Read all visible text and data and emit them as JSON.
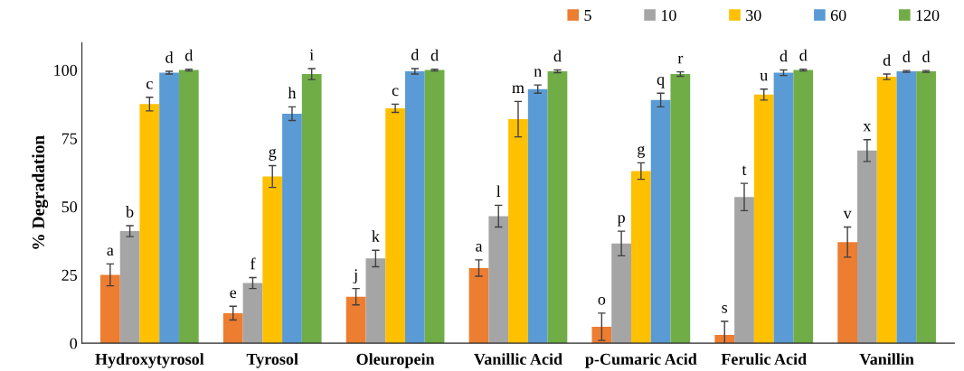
{
  "chart_data": {
    "type": "bar",
    "ylabel": "% Degradation",
    "categories": [
      "Hydroxytyrosol",
      "Tyrosol",
      "Oleuropein",
      "Vanillic Acid",
      "p-Cumaric Acid",
      "Ferulic Acid",
      "Vanillin"
    ],
    "series": [
      {
        "name": "5",
        "color": "#ed7d31",
        "values": [
          25,
          11,
          17,
          27.5,
          6,
          3,
          37
        ],
        "errors": [
          4,
          2.5,
          3,
          3,
          5,
          5,
          5.5
        ],
        "value_labels": [
          "a",
          "e",
          "j",
          "a",
          "o",
          "s",
          "v"
        ]
      },
      {
        "name": "10",
        "color": "#a5a5a5",
        "values": [
          41,
          22,
          31,
          46.5,
          36.5,
          53.5,
          70.5
        ],
        "errors": [
          2,
          2,
          3,
          4,
          4.5,
          5,
          4
        ],
        "value_labels": [
          "b",
          "f",
          "k",
          "l",
          "p",
          "t",
          "x"
        ]
      },
      {
        "name": "30",
        "color": "#ffc000",
        "values": [
          87.5,
          61,
          86,
          82,
          63,
          91,
          97.5
        ],
        "errors": [
          2.5,
          4,
          1.5,
          6.5,
          3,
          2,
          1
        ],
        "value_labels": [
          "c",
          "g",
          "c",
          "m",
          "g",
          "u",
          "d"
        ]
      },
      {
        "name": "60",
        "color": "#5b9bd5",
        "values": [
          99,
          84,
          99.5,
          93,
          89,
          99,
          99.5
        ],
        "errors": [
          0.5,
          2.5,
          1,
          1.5,
          2.5,
          1,
          0.3
        ],
        "value_labels": [
          "d",
          "h",
          "d",
          "n",
          "q",
          "d",
          "d"
        ]
      },
      {
        "name": "120",
        "color": "#70ad47",
        "values": [
          100,
          98.5,
          100,
          99.5,
          98.5,
          100,
          99.5
        ],
        "errors": [
          0.3,
          2,
          0.3,
          0.5,
          0.8,
          0.3,
          0.3
        ],
        "value_labels": [
          "d",
          "i",
          "d",
          "d",
          "r",
          "d",
          "d"
        ]
      }
    ],
    "ylim": [
      0,
      110
    ],
    "yticks": [
      0,
      25,
      50,
      75,
      100
    ],
    "grid": false,
    "legend": "top right"
  }
}
